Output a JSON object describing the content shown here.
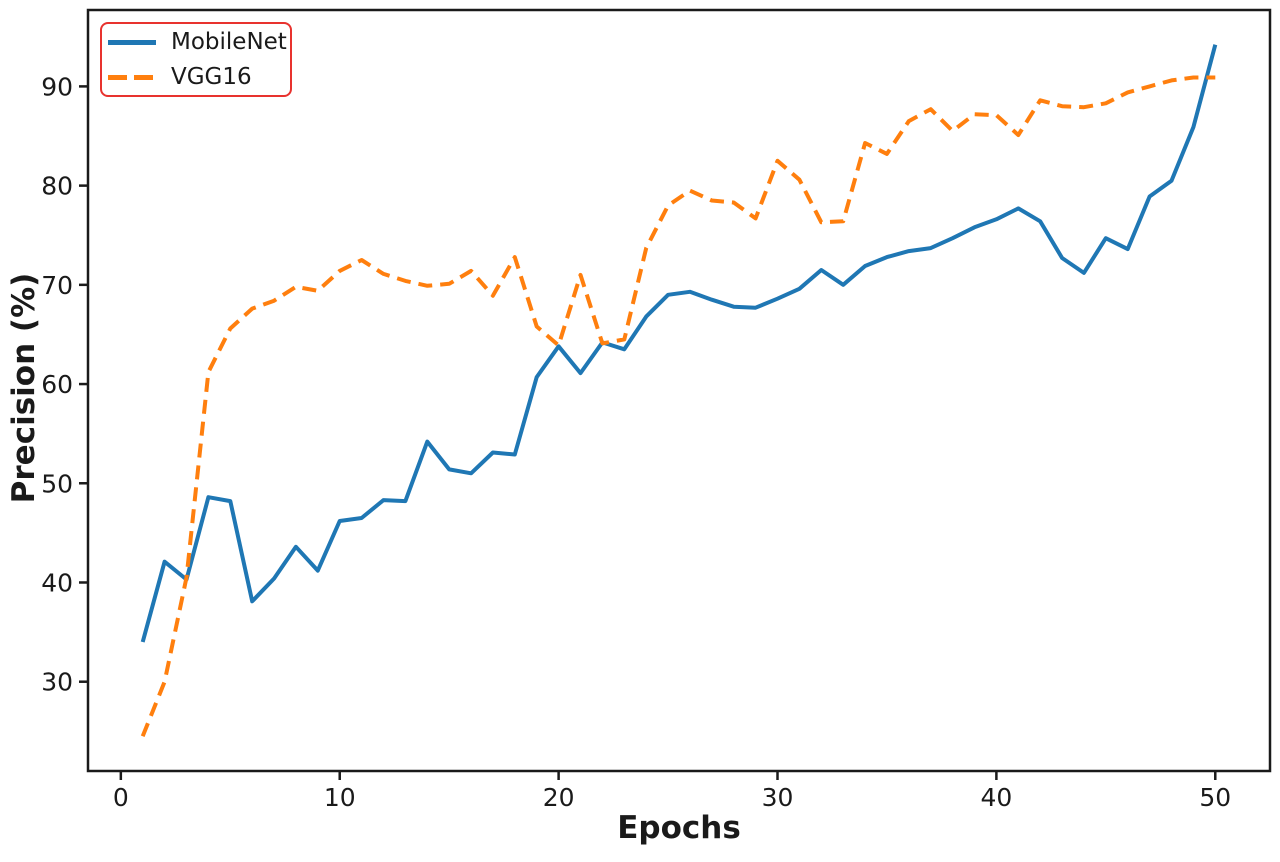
{
  "figure": {
    "background": "#ffffff",
    "axes": {
      "spine_color": "#1a1a1a",
      "tick_color": "#1a1a1a",
      "tick_label_color": "#1a1a1a",
      "tick_label_font_size": 25
    }
  },
  "legend": {
    "border_color": "#e8322e",
    "entries": [
      {
        "label": "MobileNet",
        "color": "#1f77b4",
        "style": "solid"
      },
      {
        "label": "VGG16",
        "color": "#ff7f0e",
        "style": "dashed"
      }
    ]
  },
  "chart_data": {
    "type": "line",
    "title": "",
    "xlabel": "Epochs",
    "ylabel": "Precision (%)",
    "xlim": [
      -1.5,
      52.5
    ],
    "ylim": [
      21.0,
      97.7
    ],
    "x_ticks": [
      0,
      10,
      20,
      30,
      40,
      50
    ],
    "y_ticks": [
      30,
      40,
      50,
      60,
      70,
      80,
      90
    ],
    "grid": false,
    "legend_position": "upper-left",
    "x": [
      1,
      2,
      3,
      4,
      5,
      6,
      7,
      8,
      9,
      10,
      11,
      12,
      13,
      14,
      15,
      16,
      17,
      18,
      19,
      20,
      21,
      22,
      23,
      24,
      25,
      26,
      27,
      28,
      29,
      30,
      31,
      32,
      33,
      34,
      35,
      36,
      37,
      38,
      39,
      40,
      41,
      42,
      43,
      44,
      45,
      46,
      47,
      48,
      49,
      50
    ],
    "series": [
      {
        "name": "MobileNet",
        "color": "#1f77b4",
        "style": "solid",
        "line_width": 4,
        "values": [
          34.0,
          42.1,
          40.3,
          48.6,
          48.2,
          38.1,
          40.4,
          43.6,
          41.2,
          46.2,
          46.5,
          48.3,
          48.2,
          54.2,
          51.4,
          51.0,
          53.1,
          52.9,
          60.7,
          63.8,
          61.1,
          64.2,
          63.5,
          66.8,
          69.0,
          69.3,
          68.5,
          67.8,
          67.7,
          68.6,
          69.6,
          71.5,
          70.0,
          71.9,
          72.8,
          73.4,
          73.7,
          74.7,
          75.8,
          76.6,
          77.7,
          76.4,
          72.7,
          71.2,
          74.7,
          73.6,
          78.9,
          80.5,
          85.9,
          94.2
        ]
      },
      {
        "name": "VGG16",
        "color": "#ff7f0e",
        "style": "dashed",
        "line_width": 4,
        "values": [
          24.5,
          30.0,
          40.5,
          61.2,
          65.6,
          67.6,
          68.4,
          69.8,
          69.4,
          71.4,
          72.5,
          71.1,
          70.4,
          69.9,
          70.1,
          71.4,
          68.9,
          72.8,
          65.8,
          63.9,
          71.0,
          64.1,
          64.5,
          73.7,
          78.0,
          79.5,
          78.5,
          78.3,
          76.7,
          82.5,
          80.6,
          76.3,
          76.4,
          84.3,
          83.2,
          86.5,
          87.7,
          85.5,
          87.2,
          87.1,
          85.1,
          88.6,
          88.0,
          87.9,
          88.3,
          89.4,
          90.0,
          90.6,
          90.9,
          90.9
        ]
      }
    ]
  }
}
